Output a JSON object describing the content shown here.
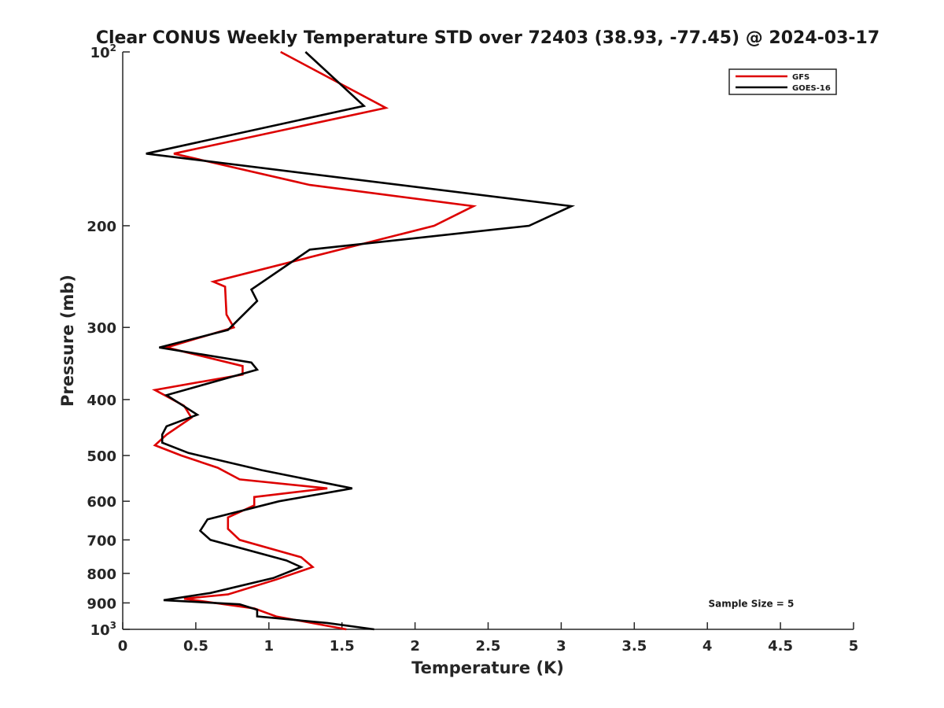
{
  "chart_data": {
    "type": "line",
    "title": "Clear CONUS Weekly Temperature STD over 72403 (38.93, -77.45) @ 2024-03-17",
    "xlabel": "Temperature (K)",
    "ylabel": "Pressure (mb)",
    "xlim": [
      0,
      5
    ],
    "ylim": [
      100,
      1000
    ],
    "y_scale": "log",
    "y_reversed": true,
    "grid": false,
    "legend_position": "top-right",
    "x_ticks": [
      0,
      0.5,
      1,
      1.5,
      2,
      2.5,
      3,
      3.5,
      4,
      4.5,
      5
    ],
    "x_tick_labels": [
      "0",
      "0.5",
      "1",
      "1.5",
      "2",
      "2.5",
      "3",
      "3.5",
      "4",
      "4.5",
      "5"
    ],
    "y_ticks": [
      100,
      200,
      300,
      400,
      500,
      600,
      700,
      800,
      900,
      1000
    ],
    "y_tick_labels": [
      {
        "base": "10",
        "sup": "2"
      },
      {
        "base": "200",
        "sup": ""
      },
      {
        "base": "300",
        "sup": ""
      },
      {
        "base": "400",
        "sup": ""
      },
      {
        "base": "500",
        "sup": ""
      },
      {
        "base": "600",
        "sup": ""
      },
      {
        "base": "700",
        "sup": ""
      },
      {
        "base": "800",
        "sup": ""
      },
      {
        "base": "900",
        "sup": ""
      },
      {
        "base": "10",
        "sup": "3"
      }
    ],
    "series": [
      {
        "name": "GFS",
        "color": "#dd0000",
        "points": [
          [
            1.08,
            100
          ],
          [
            1.8,
            125
          ],
          [
            0.35,
            150
          ],
          [
            1.28,
            170
          ],
          [
            2.4,
            185
          ],
          [
            2.13,
            200
          ],
          [
            0.62,
            250
          ],
          [
            0.7,
            255
          ],
          [
            0.71,
            285
          ],
          [
            0.76,
            300
          ],
          [
            0.3,
            325
          ],
          [
            0.82,
            350
          ],
          [
            0.82,
            362
          ],
          [
            0.22,
            385
          ],
          [
            0.42,
            410
          ],
          [
            0.47,
            430
          ],
          [
            0.3,
            460
          ],
          [
            0.22,
            480
          ],
          [
            0.4,
            500
          ],
          [
            0.65,
            525
          ],
          [
            0.8,
            550
          ],
          [
            1.4,
            570
          ],
          [
            0.9,
            590
          ],
          [
            0.9,
            610
          ],
          [
            0.72,
            640
          ],
          [
            0.72,
            670
          ],
          [
            0.8,
            700
          ],
          [
            1.22,
            750
          ],
          [
            1.3,
            780
          ],
          [
            1.05,
            820
          ],
          [
            0.72,
            870
          ],
          [
            0.42,
            885
          ],
          [
            0.9,
            920
          ],
          [
            1.05,
            950
          ],
          [
            1.53,
            1000
          ]
        ]
      },
      {
        "name": "GOES-16",
        "color": "#000000",
        "points": [
          [
            1.25,
            100
          ],
          [
            1.65,
            124
          ],
          [
            0.16,
            150
          ],
          [
            3.07,
            185
          ],
          [
            2.78,
            200
          ],
          [
            1.28,
            220
          ],
          [
            0.88,
            258
          ],
          [
            0.92,
            270
          ],
          [
            0.72,
            303
          ],
          [
            0.25,
            325
          ],
          [
            0.88,
            345
          ],
          [
            0.92,
            355
          ],
          [
            0.3,
            393
          ],
          [
            0.51,
            425
          ],
          [
            0.3,
            445
          ],
          [
            0.27,
            460
          ],
          [
            0.27,
            475
          ],
          [
            0.45,
            495
          ],
          [
            0.95,
            530
          ],
          [
            1.57,
            570
          ],
          [
            1.07,
            600
          ],
          [
            0.58,
            645
          ],
          [
            0.53,
            675
          ],
          [
            0.6,
            700
          ],
          [
            1.12,
            760
          ],
          [
            1.22,
            780
          ],
          [
            1.03,
            815
          ],
          [
            0.6,
            865
          ],
          [
            0.28,
            890
          ],
          [
            0.8,
            905
          ],
          [
            0.92,
            925
          ],
          [
            0.92,
            950
          ],
          [
            1.4,
            975
          ],
          [
            1.72,
            1000
          ]
        ]
      }
    ],
    "annotations": [
      {
        "text": "Sample Size = 5",
        "x": 4.3,
        "y": 900
      }
    ]
  }
}
